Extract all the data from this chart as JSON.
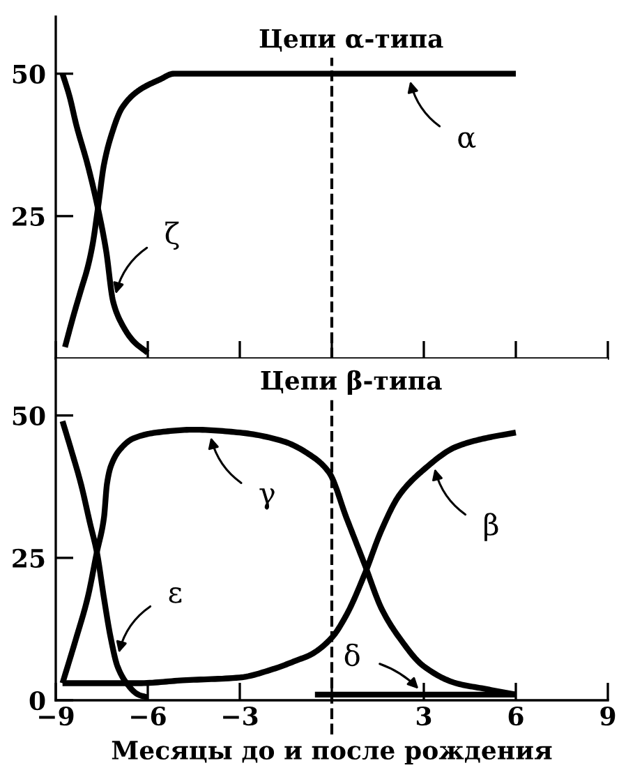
{
  "chart_data": [
    {
      "type": "line",
      "title": "Цепи α-типа",
      "xlim": [
        -9,
        9
      ],
      "xticks": [
        -9,
        -6,
        -3,
        {
          "value": 0,
          "label": null
        },
        3,
        6,
        9
      ],
      "ylim": [
        0,
        60
      ],
      "yticks": [
        25,
        50
      ],
      "tick_labels": "y",
      "line_style": "solid",
      "series": [
        {
          "color": "#000000",
          "x": [
            -8.7,
            -8.45,
            -8.18,
            -7.96,
            -7.8,
            -7.61,
            -7.43,
            -7.2,
            -6.84,
            -6.31,
            -5.6,
            -5.15,
            -4.5,
            -3,
            0,
            3,
            6
          ],
          "values": [
            2,
            7,
            12,
            16,
            20,
            27,
            34,
            39,
            44,
            47,
            49,
            50,
            50,
            50,
            50,
            50,
            50
          ]
        },
        {
          "color": "#000000",
          "x": [
            -8.78,
            -8.55,
            -8.33,
            -7.96,
            -7.61,
            -7.36,
            -7.13,
            -6.84,
            -6.46,
            -6.0
          ],
          "values": [
            50,
            46,
            41,
            34,
            26,
            19,
            10,
            6,
            3,
            1
          ]
        }
      ],
      "ref_lines": [
        {
          "axis": "x",
          "value": 0,
          "line_style": "dashed",
          "color": "#000000"
        }
      ],
      "annotations": [
        {
          "text": "α",
          "x": 2.5,
          "y": 50
        },
        {
          "text": "ζ",
          "x": -7.1,
          "y": 10
        }
      ]
    },
    {
      "type": "line",
      "title": "Цепи β-типа",
      "xlabel": "Месяцы до и после рождения",
      "xlim": [
        -9,
        9
      ],
      "xticks": [
        -9,
        -6,
        -3,
        {
          "value": 0,
          "label": null
        },
        3,
        6,
        9
      ],
      "ylim": [
        0,
        60
      ],
      "yticks": [
        0,
        25,
        50
      ],
      "line_style": "solid",
      "series": [
        {
          "color": "#000000",
          "x": [
            -8.78,
            -8.33,
            -7.96,
            -7.66,
            -7.43,
            -7.33,
            -7.21,
            -6.91,
            -6.46,
            -5.72,
            -4.5,
            -3,
            -1.6,
            -0.69,
            -0.09,
            0.48,
            1.06,
            1.63,
            2.2,
            2.99,
            4.05,
            5.0,
            6.0
          ],
          "values": [
            3,
            11,
            18,
            26,
            32,
            38,
            41,
            44,
            46,
            47,
            47.5,
            47,
            45.5,
            43,
            40,
            32,
            24,
            16,
            11,
            6,
            3,
            2,
            1
          ]
        },
        {
          "color": "#000000",
          "x": [
            -8.78,
            -6.3,
            -4.86,
            -3,
            -1.9,
            -1.15,
            -0.69,
            0,
            0.48,
            1.06,
            1.63,
            2.2,
            3,
            4.05,
            5,
            6
          ],
          "values": [
            3,
            3,
            3.5,
            4,
            5.5,
            7,
            8,
            11,
            15,
            22,
            30,
            36,
            40.5,
            44.5,
            46,
            47
          ]
        },
        {
          "color": "#000000",
          "x": [
            -8.78,
            -8.5,
            -8.18,
            -7.88,
            -7.66,
            -7.43,
            -7.21,
            -6.99,
            -6.69,
            -6.31,
            -6.0
          ],
          "values": [
            49,
            44,
            38,
            31,
            26,
            18,
            11,
            6,
            3,
            1,
            0.5
          ]
        },
        {
          "color": "#000000",
          "x": [
            -0.55,
            6
          ],
          "values": [
            1,
            1
          ]
        }
      ],
      "ref_lines": [
        {
          "axis": "x",
          "value": 0,
          "line_style": "dashed",
          "color": "#000000"
        }
      ],
      "annotations": [
        {
          "text": "γ",
          "x": -4,
          "y": 47.5
        },
        {
          "text": "ε",
          "x": -7,
          "y": 7
        },
        {
          "text": "β",
          "x": 3.3,
          "y": 42
        },
        {
          "text": "δ",
          "x": 3,
          "y": 1
        }
      ]
    }
  ]
}
